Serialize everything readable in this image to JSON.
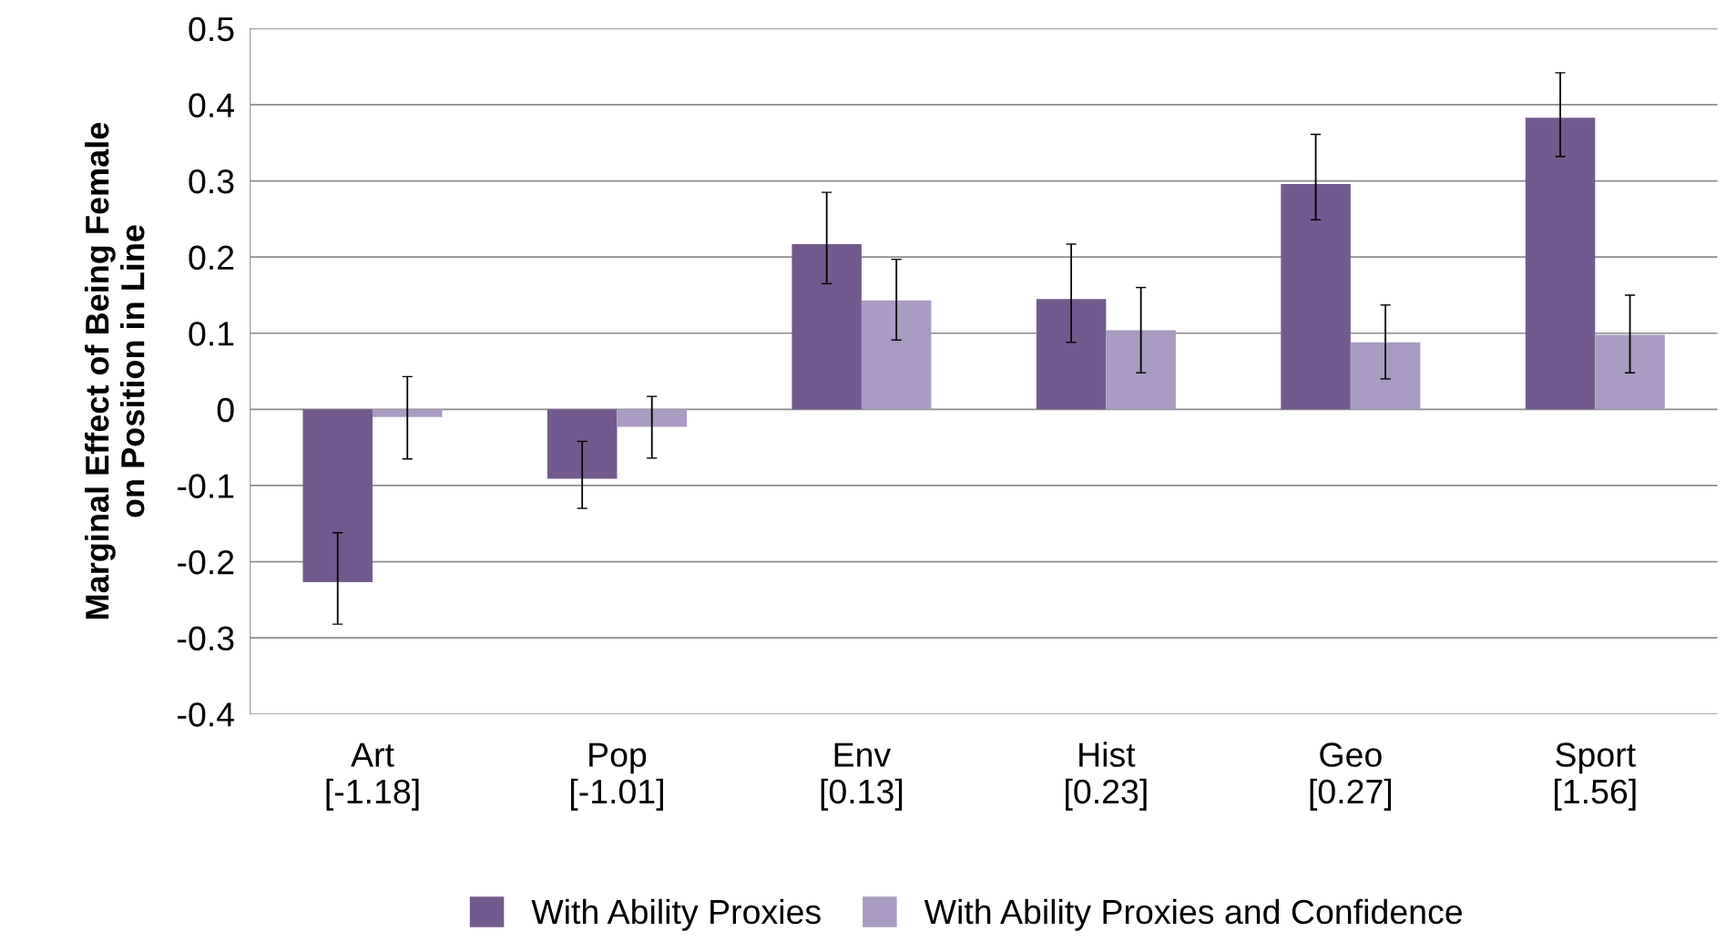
{
  "chart_data": {
    "type": "bar",
    "ylabel": "Marginal Effect of Being Female\non Position in Line",
    "categories": [
      "Art\n[-1.18]",
      "Pop\n[-1.01]",
      "Env\n[0.13]",
      "Hist\n[0.23]",
      "Geo\n[0.27]",
      "Sport\n[1.56]"
    ],
    "series": [
      {
        "name": "With Ability Proxies",
        "color": "#725a8e",
        "values": [
          -0.227,
          -0.091,
          0.217,
          0.145,
          0.296,
          0.383
        ],
        "errors": [
          [
            -0.282,
            -0.162
          ],
          [
            -0.13,
            -0.042
          ],
          [
            0.165,
            0.285
          ],
          [
            0.088,
            0.217
          ],
          [
            0.249,
            0.361
          ],
          [
            0.332,
            0.442
          ]
        ]
      },
      {
        "name": "With Ability Proxies and Confidence",
        "color": "#a99bc2",
        "values": [
          -0.01,
          -0.023,
          0.143,
          0.104,
          0.088,
          0.098
        ],
        "errors": [
          [
            -0.065,
            0.043
          ],
          [
            -0.064,
            0.017
          ],
          [
            0.091,
            0.197
          ],
          [
            0.048,
            0.16
          ],
          [
            0.04,
            0.137
          ],
          [
            0.048,
            0.15
          ]
        ]
      }
    ],
    "ylim": [
      -0.4,
      0.5
    ],
    "yticks": [
      -0.4,
      -0.3,
      -0.2,
      -0.1,
      0,
      0.1,
      0.2,
      0.3,
      0.4,
      0.5
    ],
    "grid": "y",
    "legend": "bottom"
  }
}
